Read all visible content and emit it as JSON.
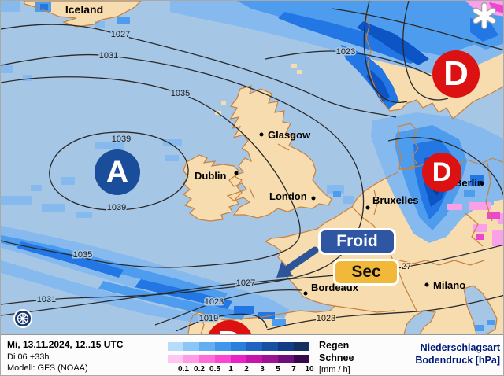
{
  "map": {
    "region_label": "Iceland",
    "cities": [
      {
        "name": "Glasgow"
      },
      {
        "name": "Dublin"
      },
      {
        "name": "London"
      },
      {
        "name": "Bruxelles"
      },
      {
        "name": "Berlin"
      },
      {
        "name": "Bordeaux"
      },
      {
        "name": "Milano"
      }
    ],
    "pressure_centers": [
      {
        "symbol": "A",
        "type": "high"
      },
      {
        "symbol": "D",
        "type": "low"
      },
      {
        "symbol": "D",
        "type": "low"
      },
      {
        "symbol": "D",
        "type": "low"
      }
    ],
    "isobar_labels": [
      {
        "text": "1027"
      },
      {
        "text": "1031"
      },
      {
        "text": "1023"
      },
      {
        "text": "1035"
      },
      {
        "text": "1039"
      },
      {
        "text": "1039"
      },
      {
        "text": "1035"
      },
      {
        "text": "1031"
      },
      {
        "text": "1027"
      },
      {
        "text": "1023"
      },
      {
        "text": "1019"
      },
      {
        "text": "1023"
      },
      {
        "text": "27"
      }
    ],
    "annotations": {
      "cold_label": "Froid",
      "dry_label": "Sec"
    }
  },
  "info_bar": {
    "datetime_line": "Mi, 13.11.2024, 12..15 UTC",
    "run_line": "Di 06 +33h",
    "model_line": "Modell: GFS (NOAA)",
    "rain_label": "Regen",
    "snow_label": "Schnee",
    "unit_label": "[mm / h]",
    "ticks": [
      "0.1",
      "0.2",
      "0.5",
      "1",
      "2",
      "3",
      "5",
      "7",
      "10"
    ],
    "type_title": "Niederschlagsart",
    "pressure_title": "Bodendruck [hPa]"
  },
  "colors": {
    "sea": "#a6c6e6",
    "land": "#f6dcae",
    "coast": "#c8813e",
    "isobar": "#2a2a2a",
    "high_center": "#1a4e9a",
    "low_center": "#dc1212",
    "cold_box": "#2e56a2",
    "dry_box": "#f2b83a",
    "arrow": "#2b5499",
    "rain_light": "#86b9ee",
    "rain_medium": "#4e9cee",
    "rain_strong": "#2277e4",
    "rain_intense": "#0d54c4",
    "rain_core": "#0a3e96",
    "snow_light": "#f9a0e8",
    "snow_strong": "#ee46d0",
    "rain_scale": [
      "#b7dcfa",
      "#8cc6f6",
      "#62aef0",
      "#3f96ea",
      "#2a7edc",
      "#1e64c0",
      "#1850a2",
      "#123c84",
      "#14305e"
    ],
    "snow_scale": [
      "#ffc6f0",
      "#ff9ce4",
      "#ff6ed8",
      "#fa46d0",
      "#e822c4",
      "#c414aa",
      "#9c1292",
      "#6e0e7a",
      "#38094a"
    ]
  }
}
